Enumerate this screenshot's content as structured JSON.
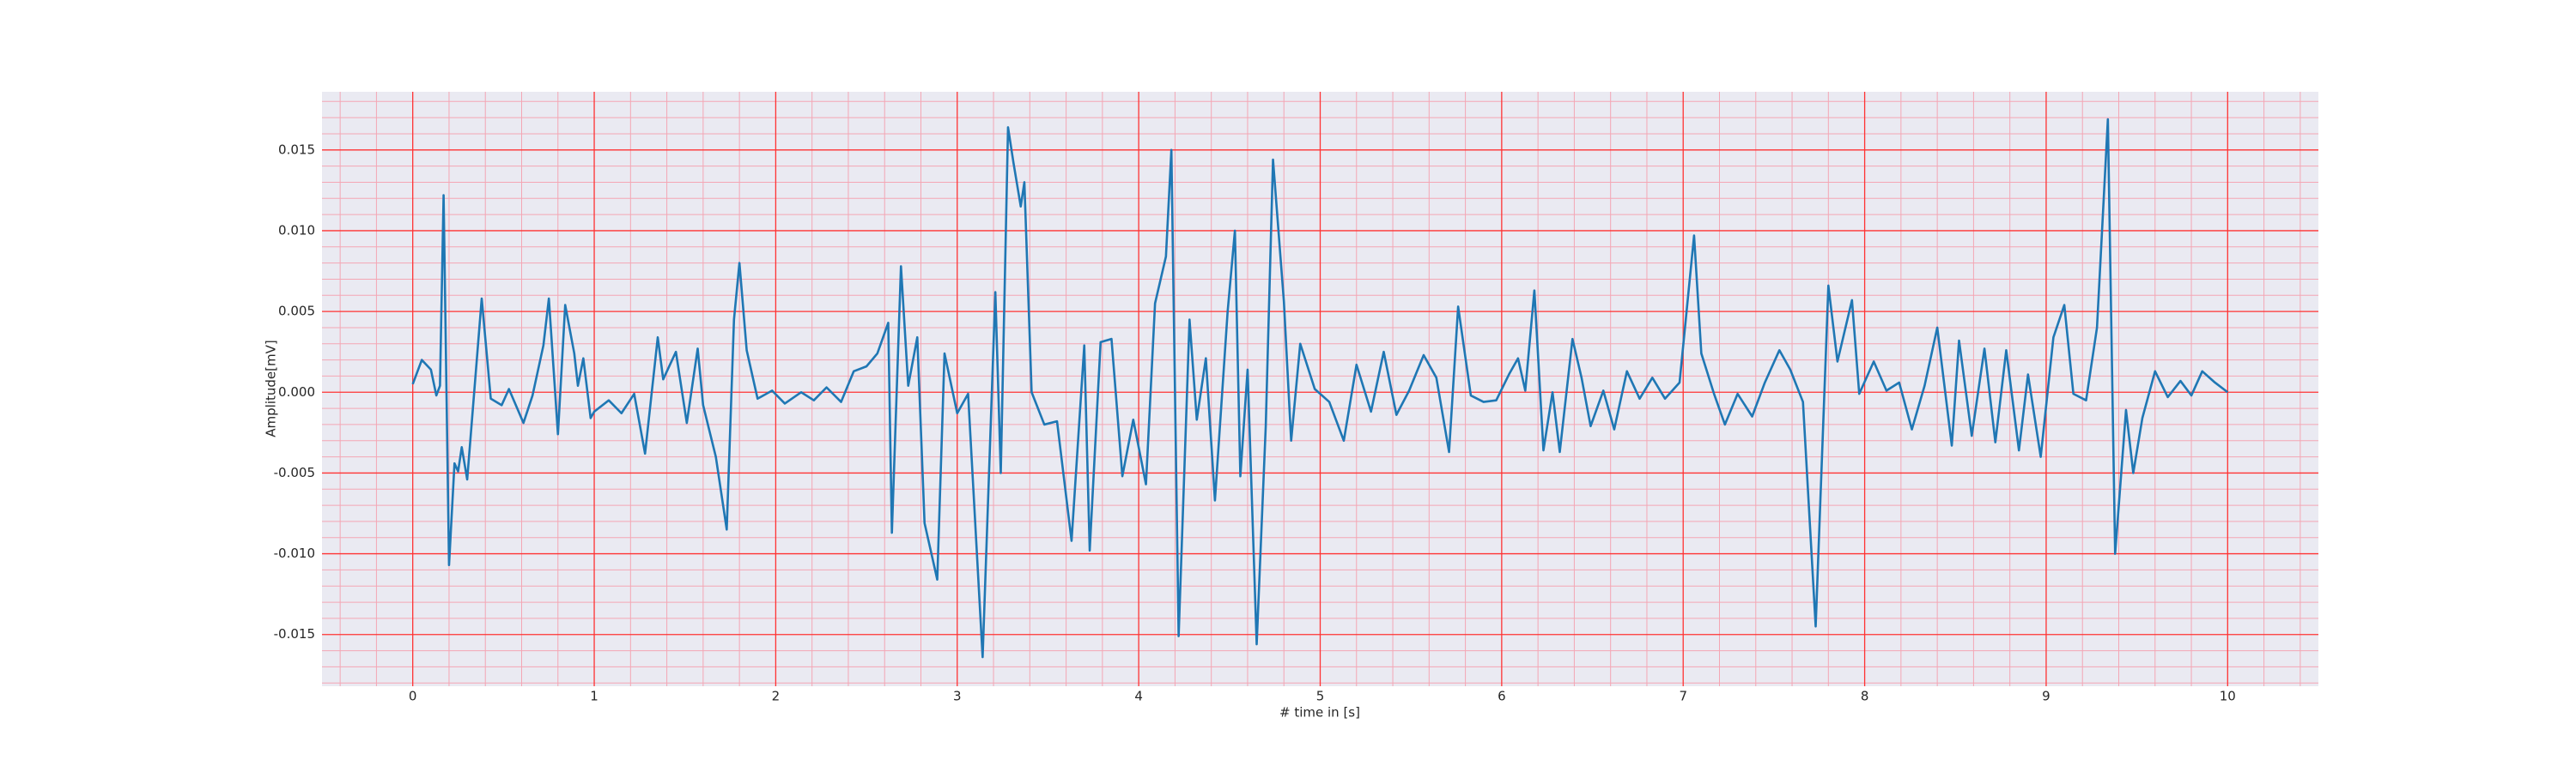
{
  "chart_data": {
    "type": "line",
    "xlabel": "# time in [s]",
    "ylabel": "Amplitude[mV]",
    "color": "#1f77b4",
    "grid": true,
    "grid_color": "#ff3333",
    "minor_grid": true,
    "minor_grid_color": "#f4a6b4",
    "background": "#eaeaf2",
    "xlim": [
      -0.5,
      10.5
    ],
    "ylim": [
      -0.0182,
      0.0186
    ],
    "xticks": [
      0,
      1,
      2,
      3,
      4,
      5,
      6,
      7,
      8,
      9,
      10
    ],
    "yticks": [
      -0.015,
      {
        "value": -0.01,
        "label": "-0.010"
      },
      -0.005,
      {
        "value": 0,
        "label": "0.000"
      },
      0.005,
      {
        "value": 0.01,
        "label": "0.010"
      },
      0.015
    ],
    "x": [
      0,
      0.05,
      0.1,
      0.13,
      0.15,
      0.17,
      0.2,
      0.23,
      0.25,
      0.27,
      0.3,
      0.38,
      0.43,
      0.49,
      0.53,
      0.61,
      0.66,
      0.72,
      0.75,
      0.8,
      0.84,
      0.89,
      0.91,
      0.94,
      0.98,
      1.0,
      1.08,
      1.15,
      1.22,
      1.28,
      1.35,
      1.38,
      1.45,
      1.51,
      1.57,
      1.6,
      1.67,
      1.73,
      1.77,
      1.8,
      1.84,
      1.9,
      1.98,
      2.05,
      2.14,
      2.21,
      2.28,
      2.36,
      2.43,
      2.5,
      2.56,
      2.62,
      2.64,
      2.69,
      2.73,
      2.78,
      2.82,
      2.89,
      2.93,
      3.0,
      3.06,
      3.14,
      3.21,
      3.24,
      3.28,
      3.31,
      3.35,
      3.37,
      3.41,
      3.48,
      3.55,
      3.63,
      3.7,
      3.73,
      3.79,
      3.85,
      3.91,
      3.97,
      4.04,
      4.09,
      4.15,
      4.18,
      4.22,
      4.28,
      4.32,
      4.37,
      4.42,
      4.49,
      4.53,
      4.56,
      4.6,
      4.65,
      4.7,
      4.74,
      4.8,
      4.84,
      4.89,
      4.97,
      5.05,
      5.13,
      5.2,
      5.28,
      5.35,
      5.42,
      5.49,
      5.57,
      5.64,
      5.71,
      5.76,
      5.83,
      5.9,
      5.97,
      6.04,
      6.09,
      6.13,
      6.18,
      6.23,
      6.28,
      6.32,
      6.39,
      6.44,
      6.49,
      6.56,
      6.62,
      6.69,
      6.76,
      6.83,
      6.9,
      6.98,
      7.06,
      7.1,
      7.17,
      7.23,
      7.3,
      7.38,
      7.45,
      7.53,
      7.59,
      7.66,
      7.73,
      7.8,
      7.85,
      7.93,
      7.97,
      8.05,
      8.12,
      8.19,
      8.26,
      8.33,
      8.4,
      8.48,
      8.52,
      8.59,
      8.66,
      8.72,
      8.78,
      8.85,
      8.9,
      8.97,
      9.04,
      9.1,
      9.15,
      9.22,
      9.28,
      9.34,
      9.38,
      9.44,
      9.48,
      9.53,
      9.6,
      9.67,
      9.74,
      9.8,
      9.86,
      9.93,
      10.0
    ],
    "values": [
      0.0005,
      0.002,
      0.0014,
      -0.0002,
      0.0004,
      0.0122,
      -0.0107,
      -0.0044,
      -0.0049,
      -0.0034,
      -0.0054,
      0.0058,
      -0.0004,
      -0.0008,
      0.0002,
      -0.0019,
      -0.0002,
      0.0029,
      0.0058,
      -0.0026,
      0.0054,
      0.0024,
      0.0004,
      0.0021,
      -0.0016,
      -0.0012,
      -0.0005,
      -0.0013,
      -0.0001,
      -0.0038,
      0.0034,
      0.0008,
      0.0025,
      -0.0019,
      0.0027,
      -0.0008,
      -0.004,
      -0.0085,
      0.0045,
      0.008,
      0.0026,
      -0.0004,
      0.0001,
      -0.0007,
      0,
      -0.0005,
      0.0003,
      -0.0006,
      0.0013,
      0.0016,
      0.0024,
      0.0043,
      -0.0087,
      0.0078,
      0.0004,
      0.0034,
      -0.0081,
      -0.0116,
      0.0024,
      -0.0013,
      -0.0001,
      -0.0164,
      0.0062,
      -0.005,
      0.0164,
      0.0142,
      0.0115,
      0.013,
      0,
      -0.002,
      -0.0018,
      -0.0092,
      0.0029,
      -0.0098,
      0.0031,
      0.0033,
      -0.0052,
      -0.0017,
      -0.0057,
      0.0055,
      0.0084,
      0.015,
      -0.0151,
      0.0045,
      -0.0017,
      0.0021,
      -0.0067,
      0.005,
      0.01,
      -0.0052,
      0.0014,
      -0.0156,
      -0.0021,
      0.0144,
      0.0056,
      -0.003,
      0.003,
      0.0002,
      -0.0006,
      -0.003,
      0.0017,
      -0.0012,
      0.0025,
      -0.0014,
      0.0001,
      0.0023,
      0.0009,
      -0.0037,
      0.0053,
      -0.0002,
      -0.0006,
      -0.0005,
      0.0011,
      0.0021,
      0.0001,
      0.0063,
      -0.0036,
      0,
      -0.0037,
      0.0033,
      0.0009,
      -0.0021,
      0.0001,
      -0.0023,
      0.0013,
      -0.0004,
      0.0009,
      -0.0004,
      0.0006,
      0.0097,
      0.0024,
      -0.0001,
      -0.002,
      -0.0001,
      -0.0015,
      0.0006,
      0.0026,
      0.0014,
      -0.0006,
      -0.0145,
      0.0066,
      0.0019,
      0.0057,
      -0.0001,
      0.0019,
      0.0001,
      0.0006,
      -0.0023,
      0.0004,
      0.004,
      -0.0033,
      0.0032,
      -0.0027,
      0.0027,
      -0.0031,
      0.0026,
      -0.0036,
      0.0011,
      -0.004,
      0.0034,
      0.0054,
      -0.0001,
      -0.0005,
      0.004,
      0.0169,
      -0.01,
      -0.0011,
      -0.005,
      -0.0016,
      0.0013,
      -0.0003,
      0.0007,
      -0.0002,
      0.0013,
      0.0006,
      0
    ]
  }
}
